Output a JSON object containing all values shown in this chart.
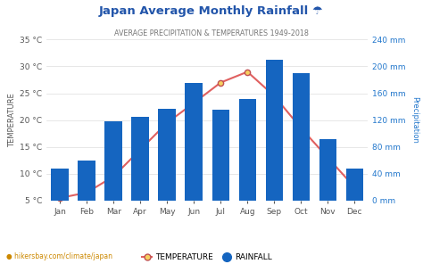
{
  "title": "Japan Average Monthly Rainfall ☂",
  "subtitle": "AVERAGE PRECIPITATION & TEMPERATURES 1949-2018",
  "months": [
    "Jan",
    "Feb",
    "Mar",
    "Apr",
    "May",
    "Jun",
    "Jul",
    "Aug",
    "Sep",
    "Oct",
    "Nov",
    "Dec"
  ],
  "rainfall_mm": [
    48,
    60,
    118,
    125,
    137,
    175,
    135,
    152,
    210,
    190,
    92,
    48
  ],
  "temperature_c": [
    5.5,
    6.5,
    9.5,
    14.5,
    19.5,
    23.2,
    27.0,
    29.0,
    24.5,
    18.5,
    13.0,
    7.5
  ],
  "bar_color": "#1565c0",
  "line_color": "#e06060",
  "marker_face": "#f5d060",
  "marker_edge": "#c05050",
  "left_ylabel": "TEMPERATURE",
  "right_ylabel": "Precipitation",
  "temp_ylim": [
    5,
    35
  ],
  "temp_yticks": [
    5,
    10,
    15,
    20,
    25,
    30,
    35
  ],
  "temp_yticklabels": [
    "5 °C",
    "10 °C",
    "15 °C",
    "20 °C",
    "25 °C",
    "30 °C",
    "35 °C"
  ],
  "precip_ylim": [
    0,
    240
  ],
  "precip_yticks": [
    0,
    40,
    80,
    120,
    160,
    200,
    240
  ],
  "precip_yticklabels": [
    "0 mm",
    "40 mm",
    "80 mm",
    "120 mm",
    "160 mm",
    "200 mm",
    "240 mm"
  ],
  "bg_color": "#ffffff",
  "grid_color": "#dddddd",
  "title_color": "#2255aa",
  "subtitle_color": "#777777",
  "left_axis_color": "#555555",
  "right_axis_color": "#2277cc",
  "footer_text": "hikersbay.com/climate/japan",
  "footer_color": "#cc8800",
  "legend_temp_label": "TEMPERATURE",
  "legend_rain_label": "RAINFALL"
}
